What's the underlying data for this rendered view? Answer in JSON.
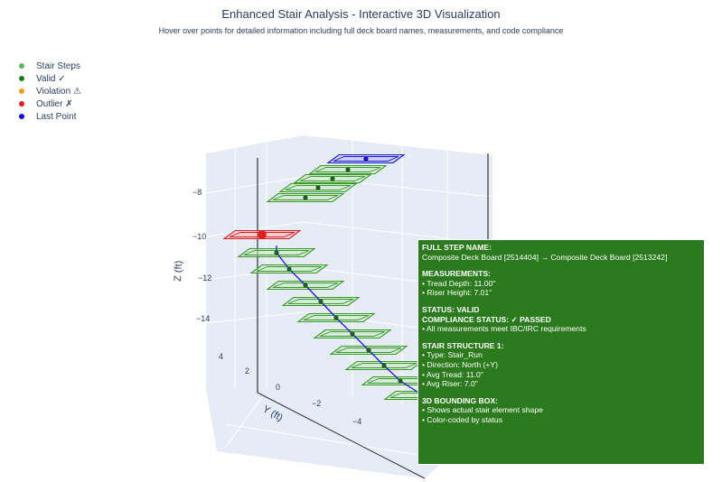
{
  "title": "Enhanced Stair Analysis - Interactive 3D Visualization",
  "subtitle": "Hover over points for detailed information including full deck board names, measurements, and code compliance",
  "legend": [
    {
      "label": "Stair Steps",
      "color": "#5cb85c"
    },
    {
      "label": "Valid ✓",
      "color": "#1e7b1e"
    },
    {
      "label": "Violation ⚠",
      "color": "#f39c12"
    },
    {
      "label": "Outlier ✗",
      "color": "#e02020"
    },
    {
      "label": "Last Point",
      "color": "#1010cc"
    }
  ],
  "colors": {
    "step_box": "#3a9a2a",
    "step_fill": "#c9e9c0",
    "outlier_box": "#d92020",
    "outlier_fill": "#f4b4b4",
    "last_box": "#1a1ad0",
    "last_fill": "#b8b8f0",
    "path_line": "#1a1ad0",
    "point": "#1e5e1e",
    "scene_bg": "#e5ecf6",
    "tooltip_bg": "#2c7a1e"
  },
  "chart_data": {
    "type": "scatter3d",
    "title": "Enhanced Stair Analysis - Interactive 3D Visualization",
    "z_axis": {
      "title": "Z (ft)",
      "ticks": [
        "−8",
        "−10",
        "−12",
        "−14"
      ]
    },
    "y_axis": {
      "title": "Y (ft)",
      "ticks": [
        "4",
        "2",
        "0",
        "−2",
        "−4"
      ]
    },
    "steps": [
      {
        "index": 1,
        "status": "last"
      },
      {
        "index": 2,
        "status": "valid"
      },
      {
        "index": 3,
        "status": "valid"
      },
      {
        "index": 4,
        "status": "valid"
      },
      {
        "index": 5,
        "status": "valid"
      },
      {
        "index": 6,
        "status": "outlier"
      },
      {
        "index": 7,
        "status": "valid"
      },
      {
        "index": 8,
        "status": "valid"
      },
      {
        "index": 9,
        "status": "valid"
      },
      {
        "index": 10,
        "status": "valid"
      },
      {
        "index": 11,
        "status": "valid"
      },
      {
        "index": 12,
        "status": "valid"
      },
      {
        "index": 13,
        "status": "valid"
      },
      {
        "index": 14,
        "status": "valid"
      },
      {
        "index": 15,
        "status": "valid"
      },
      {
        "index": 16,
        "status": "valid"
      }
    ]
  },
  "tooltip": {
    "full_step_name_header": "FULL STEP NAME:",
    "full_step_name": "Composite Deck Board [2514404] → Composite Deck Board [2513242]",
    "measurements_header": "MEASUREMENTS:",
    "tread_depth": "• Tread Depth: 11.00\"",
    "riser_height": "• Riser Height: 7.01\"",
    "status": "STATUS: VALID",
    "compliance": "COMPLIANCE STATUS: ✓ PASSED",
    "compliance_note": "• All measurements meet IBC/IRC requirements",
    "structure_header": "STAIR STRUCTURE 1:",
    "structure_type": "• Type: Stair_Run",
    "structure_direction": "• Direction: North (+Y)",
    "avg_tread": "• Avg Tread: 11.0\"",
    "avg_riser": "• Avg Riser: 7.0\"",
    "bbox_header": "3D BOUNDING BOX:",
    "bbox_note1": "• Shows actual stair element shape",
    "bbox_note2": "• Color-coded by status"
  }
}
